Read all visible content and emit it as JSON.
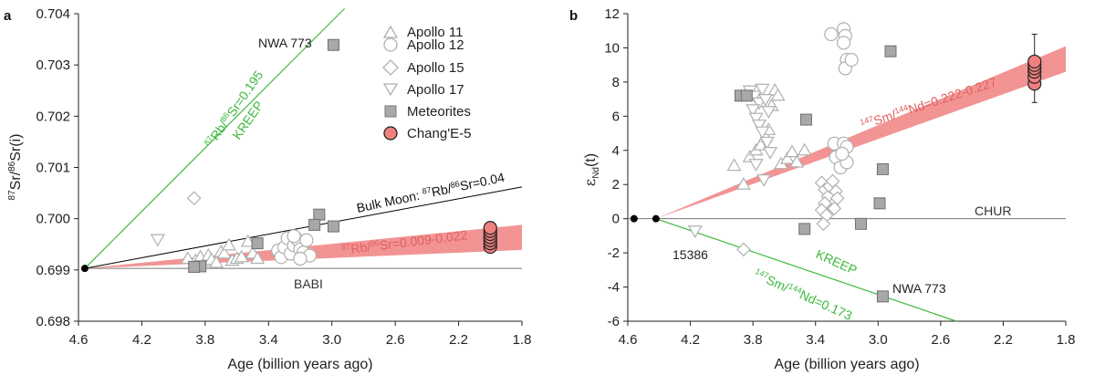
{
  "colors": {
    "kreep": "#3cb83c",
    "ce5_fill": "#f08080",
    "ce5_band": "#f29494",
    "ce5_text": "#e25f5f",
    "meteorite": "#a8a8a8",
    "grey_line": "#777777",
    "open_marker": "#b0b0b0",
    "black": "#000000"
  },
  "legend": [
    {
      "label": "Apollo 11",
      "marker": "triangle-up"
    },
    {
      "label": "Apollo 12",
      "marker": "circle"
    },
    {
      "label": "Apollo 15",
      "marker": "diamond"
    },
    {
      "label": "Apollo 17",
      "marker": "triangle-down"
    },
    {
      "label": "Meteorites",
      "marker": "square"
    },
    {
      "label": "Chang'E-5",
      "marker": "red-circle"
    }
  ],
  "chart_data": [
    {
      "panel": "a",
      "type": "scatter",
      "xlabel": "Age (billion years ago)",
      "ylabel": "87Sr/86Sr(i)",
      "xlim": [
        4.6,
        1.8
      ],
      "ylim": [
        0.698,
        0.704
      ],
      "xticks": [
        "4.6",
        "4.2",
        "3.8",
        "3.4",
        "3.0",
        "2.6",
        "2.2",
        "1.8"
      ],
      "yticks": [
        "0.698",
        "0.699",
        "0.700",
        "0.701",
        "0.702",
        "0.703",
        "0.704"
      ],
      "origin": [
        4.56,
        0.69903
      ],
      "lines": [
        {
          "name": "KREEP",
          "to": [
            2.92,
            0.7041
          ],
          "color": "kreep"
        },
        {
          "name": "Bulk Moon",
          "to": [
            1.8,
            0.70062
          ],
          "color": "black"
        },
        {
          "name": "BABI",
          "to": [
            1.8,
            0.69903
          ],
          "color": "grey_line"
        }
      ],
      "band": {
        "upper_end": [
          1.8,
          0.69988
        ],
        "lower_end": [
          1.8,
          0.69939
        ]
      },
      "annotations": {
        "kreep_ratio": {
          "sup1": "87",
          "mid1": "Rb/",
          "sup2": "86",
          "rest": "Sr=0.195"
        },
        "kreep_label": "KREEP",
        "bulk_prefix": "Bulk Moon: ",
        "bulk_ratio": {
          "sup1": "87",
          "mid1": "Rb/",
          "sup2": "86",
          "rest": "Sr=0.04"
        },
        "ce5_ratio": {
          "sup1": "87",
          "mid1": "Rb/",
          "sup2": "86",
          "rest": "Sr=0.009-0.022"
        },
        "babi": "BABI",
        "nwa": "NWA  773"
      },
      "series": [
        {
          "name": "Apollo 11",
          "marker": "triangle-up",
          "points": [
            [
              3.91,
              0.69922
            ],
            [
              3.86,
              0.69918
            ],
            [
              3.83,
              0.69925
            ],
            [
              3.8,
              0.69916
            ],
            [
              3.78,
              0.69928
            ],
            [
              3.76,
              0.6992
            ],
            [
              3.73,
              0.69914
            ],
            [
              3.7,
              0.69935
            ],
            [
              3.68,
              0.69932
            ],
            [
              3.65,
              0.69948
            ],
            [
              3.63,
              0.69918
            ],
            [
              3.6,
              0.69922
            ],
            [
              3.57,
              0.69925
            ],
            [
              3.53,
              0.69955
            ],
            [
              3.5,
              0.69932
            ],
            [
              3.47,
              0.69922
            ]
          ]
        },
        {
          "name": "Apollo 12",
          "marker": "circle",
          "points": [
            [
              3.34,
              0.69938
            ],
            [
              3.32,
              0.69925
            ],
            [
              3.3,
              0.69944
            ],
            [
              3.28,
              0.69962
            ],
            [
              3.26,
              0.69932
            ],
            [
              3.24,
              0.69948
            ],
            [
              3.22,
              0.6996
            ],
            [
              3.2,
              0.6994
            ],
            [
              3.18,
              0.69934
            ],
            [
              3.16,
              0.69958
            ],
            [
              3.14,
              0.69928
            ],
            [
              3.2,
              0.69922
            ],
            [
              3.24,
              0.69966
            ]
          ]
        },
        {
          "name": "Apollo 15",
          "marker": "diamond",
          "points": [
            [
              3.87,
              0.7004
            ],
            [
              3.27,
              0.69945
            ]
          ]
        },
        {
          "name": "Apollo 17",
          "marker": "triangle-down",
          "points": [
            [
              4.1,
              0.6996
            ]
          ]
        },
        {
          "name": "Meteorites",
          "marker": "square",
          "points": [
            [
              2.99,
              0.70339
            ],
            [
              3.08,
              0.70008
            ],
            [
              3.11,
              0.69988
            ],
            [
              2.99,
              0.69985
            ],
            [
              3.47,
              0.69952
            ],
            [
              3.83,
              0.69907
            ],
            [
              3.87,
              0.69906
            ]
          ]
        },
        {
          "name": "Chang'E-5",
          "marker": "red-circle",
          "points": [
            [
              2.0,
              0.69945
            ],
            [
              2.0,
              0.69952
            ],
            [
              2.0,
              0.69958
            ],
            [
              2.0,
              0.69964
            ],
            [
              2.0,
              0.6997
            ],
            [
              2.0,
              0.69976
            ],
            [
              2.0,
              0.69982
            ]
          ]
        }
      ]
    },
    {
      "panel": "b",
      "type": "scatter",
      "xlabel": "Age (billion years ago)",
      "ylabel": "εNd(t)",
      "xlim": [
        4.6,
        1.8
      ],
      "ylim": [
        -6,
        12
      ],
      "xticks": [
        "4.6",
        "4.2",
        "3.8",
        "3.4",
        "3.0",
        "2.6",
        "2.2",
        "1.8"
      ],
      "yticks": [
        "-6",
        "-4",
        "-2",
        "0",
        "2",
        "4",
        "6",
        "8",
        "10",
        "12"
      ],
      "origin": [
        4.42,
        0
      ],
      "lines": [
        {
          "name": "CHUR",
          "from": [
            4.6,
            0
          ],
          "to": [
            1.8,
            0
          ],
          "color": "grey_line"
        },
        {
          "name": "KREEP",
          "to": [
            2.5,
            -6
          ],
          "color": "kreep"
        }
      ],
      "band": {
        "upper_end": [
          1.8,
          10.1
        ],
        "lower_end": [
          1.8,
          8.6
        ]
      },
      "black_points": [
        [
          4.56,
          0
        ],
        [
          4.42,
          0
        ]
      ],
      "annotations": {
        "ce5_ratio": {
          "sup1": "147",
          "mid1": "Sm/",
          "sup2": "144",
          "rest": "Nd=0.222-0.227"
        },
        "kreep_label": "KREEP",
        "kreep_ratio": {
          "sup1": "147",
          "mid1": "Sm/",
          "sup2": "144",
          "rest": "Nd=0.173"
        },
        "chur": "CHUR",
        "sample": "15386",
        "nwa": "NWA 773"
      },
      "series": [
        {
          "name": "Apollo 11",
          "marker": "triangle-up",
          "points": [
            [
              3.92,
              3.1
            ],
            [
              3.86,
              2.0
            ],
            [
              3.82,
              3.6
            ],
            [
              3.78,
              4.0
            ],
            [
              3.75,
              4.3
            ],
            [
              3.72,
              4.8
            ],
            [
              3.7,
              5.2
            ],
            [
              3.68,
              6.6
            ],
            [
              3.66,
              7.5
            ],
            [
              3.64,
              7.2
            ],
            [
              3.62,
              3.2
            ],
            [
              3.58,
              3.5
            ],
            [
              3.55,
              3.9
            ],
            [
              3.52,
              3.3
            ],
            [
              3.47,
              4.0
            ]
          ]
        },
        {
          "name": "Apollo 12",
          "marker": "circle",
          "points": [
            [
              3.3,
              10.8
            ],
            [
              3.22,
              11.1
            ],
            [
              3.21,
              10.7
            ],
            [
              3.22,
              10.3
            ],
            [
              3.2,
              9.3
            ],
            [
              3.21,
              8.8
            ],
            [
              3.17,
              9.3
            ],
            [
              3.28,
              4.4
            ],
            [
              3.22,
              4.4
            ],
            [
              3.2,
              4.2
            ],
            [
              3.27,
              3.6
            ],
            [
              3.24,
              3.0
            ],
            [
              3.2,
              3.3
            ],
            [
              3.23,
              3.8
            ]
          ]
        },
        {
          "name": "Apollo 15",
          "marker": "diamond",
          "points": [
            [
              3.36,
              2.1
            ],
            [
              3.34,
              1.7
            ],
            [
              3.32,
              1.3
            ],
            [
              3.31,
              1.9
            ],
            [
              3.29,
              2.2
            ],
            [
              3.27,
              1.6
            ],
            [
              3.26,
              1.2
            ],
            [
              3.34,
              0.9
            ],
            [
              3.36,
              0.5
            ],
            [
              3.33,
              0.2
            ],
            [
              3.35,
              -0.3
            ],
            [
              3.28,
              0.6
            ],
            [
              3.86,
              -1.8
            ]
          ]
        },
        {
          "name": "Apollo 17",
          "marker": "triangle-down",
          "points": [
            [
              4.17,
              -0.7
            ],
            [
              3.82,
              7.5
            ],
            [
              3.79,
              7.2
            ],
            [
              3.76,
              6.8
            ],
            [
              3.74,
              7.6
            ],
            [
              3.72,
              7.0
            ],
            [
              3.7,
              6.3
            ],
            [
              3.8,
              6.4
            ],
            [
              3.78,
              5.9
            ],
            [
              3.76,
              5.5
            ],
            [
              3.74,
              5.1
            ],
            [
              3.71,
              4.5
            ],
            [
              3.69,
              3.9
            ],
            [
              3.73,
              2.3
            ],
            [
              3.78,
              3.2
            ]
          ]
        },
        {
          "name": "Meteorites",
          "marker": "square",
          "points": [
            [
              3.88,
              7.2
            ],
            [
              3.84,
              7.2
            ],
            [
              3.46,
              5.8
            ],
            [
              2.92,
              9.8
            ],
            [
              2.97,
              2.9
            ],
            [
              2.99,
              0.9
            ],
            [
              3.11,
              -0.3
            ],
            [
              3.47,
              -0.6
            ],
            [
              2.97,
              -4.55
            ]
          ]
        },
        {
          "name": "Chang'E-5",
          "marker": "red-circle",
          "points": [
            [
              2.0,
              7.9
            ],
            [
              2.0,
              8.3
            ],
            [
              2.0,
              8.6
            ],
            [
              2.0,
              8.8
            ],
            [
              2.0,
              9.0
            ],
            [
              2.0,
              9.2
            ]
          ]
        }
      ],
      "error_bar": {
        "x": 2.0,
        "low": 6.8,
        "high": 10.8
      }
    }
  ]
}
